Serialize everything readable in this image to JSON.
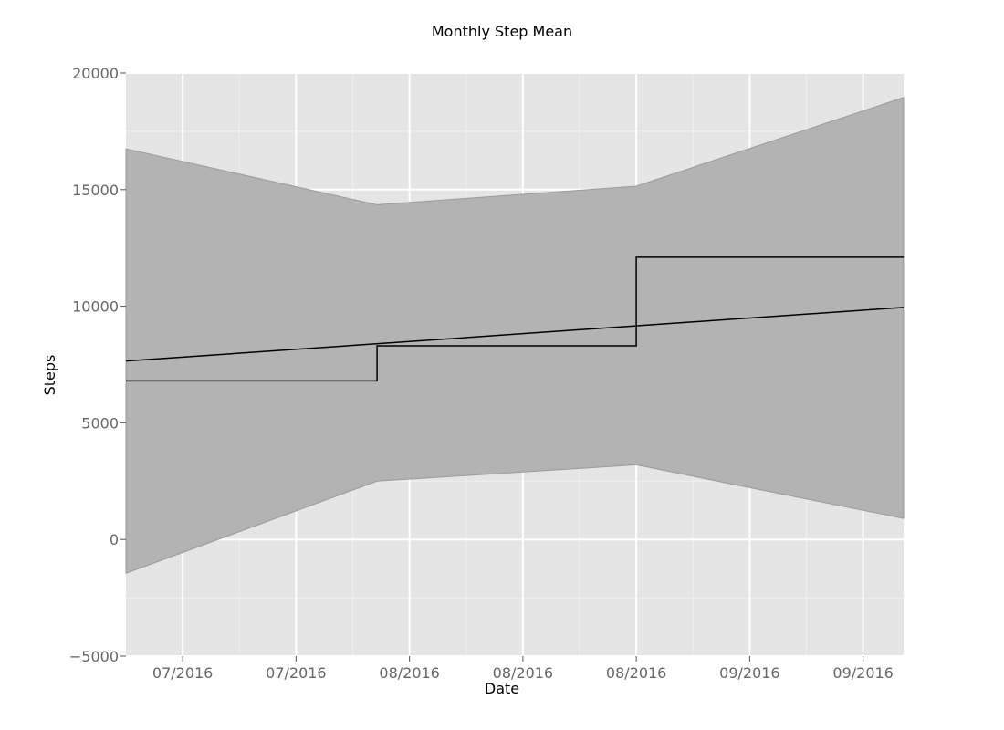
{
  "chart_data": {
    "type": "line",
    "title": "Monthly Step Mean",
    "xlabel": "Date",
    "ylabel": "Steps",
    "ylim": [
      -5000,
      20000
    ],
    "xlim": [
      "2016-06-26",
      "2016-09-30"
    ],
    "y_ticks": [
      -5000,
      0,
      5000,
      10000,
      15000,
      20000
    ],
    "y_tick_labels": [
      "−5000",
      "0",
      "5000",
      "10000",
      "15000",
      "20000"
    ],
    "x_ticks": [
      "2016-07-03",
      "2016-07-17",
      "2016-07-31",
      "2016-08-14",
      "2016-08-28",
      "2016-09-11",
      "2016-09-25"
    ],
    "x_tick_labels": [
      "07/2016",
      "07/2016",
      "08/2016",
      "08/2016",
      "08/2016",
      "09/2016",
      "09/2016"
    ],
    "grid": true,
    "background": "#e5e5e5",
    "colors": {
      "band": "#b3b3b3",
      "line": "#000000",
      "grid_major": "#ffffff"
    },
    "step_series": {
      "x": [
        "2016-06-26",
        "2016-07-27",
        "2016-08-28",
        "2016-09-30"
      ],
      "y": [
        6800,
        8300,
        12100,
        12100
      ]
    },
    "trend_series": {
      "x": [
        "2016-06-26",
        "2016-09-30"
      ],
      "y": [
        7650,
        9950
      ]
    },
    "confidence_band": {
      "x": [
        "2016-06-26",
        "2016-07-27",
        "2016-08-28",
        "2016-09-30"
      ],
      "upper": [
        16750,
        14350,
        15150,
        18950
      ],
      "lower": [
        -1450,
        2500,
        3200,
        900
      ]
    }
  }
}
